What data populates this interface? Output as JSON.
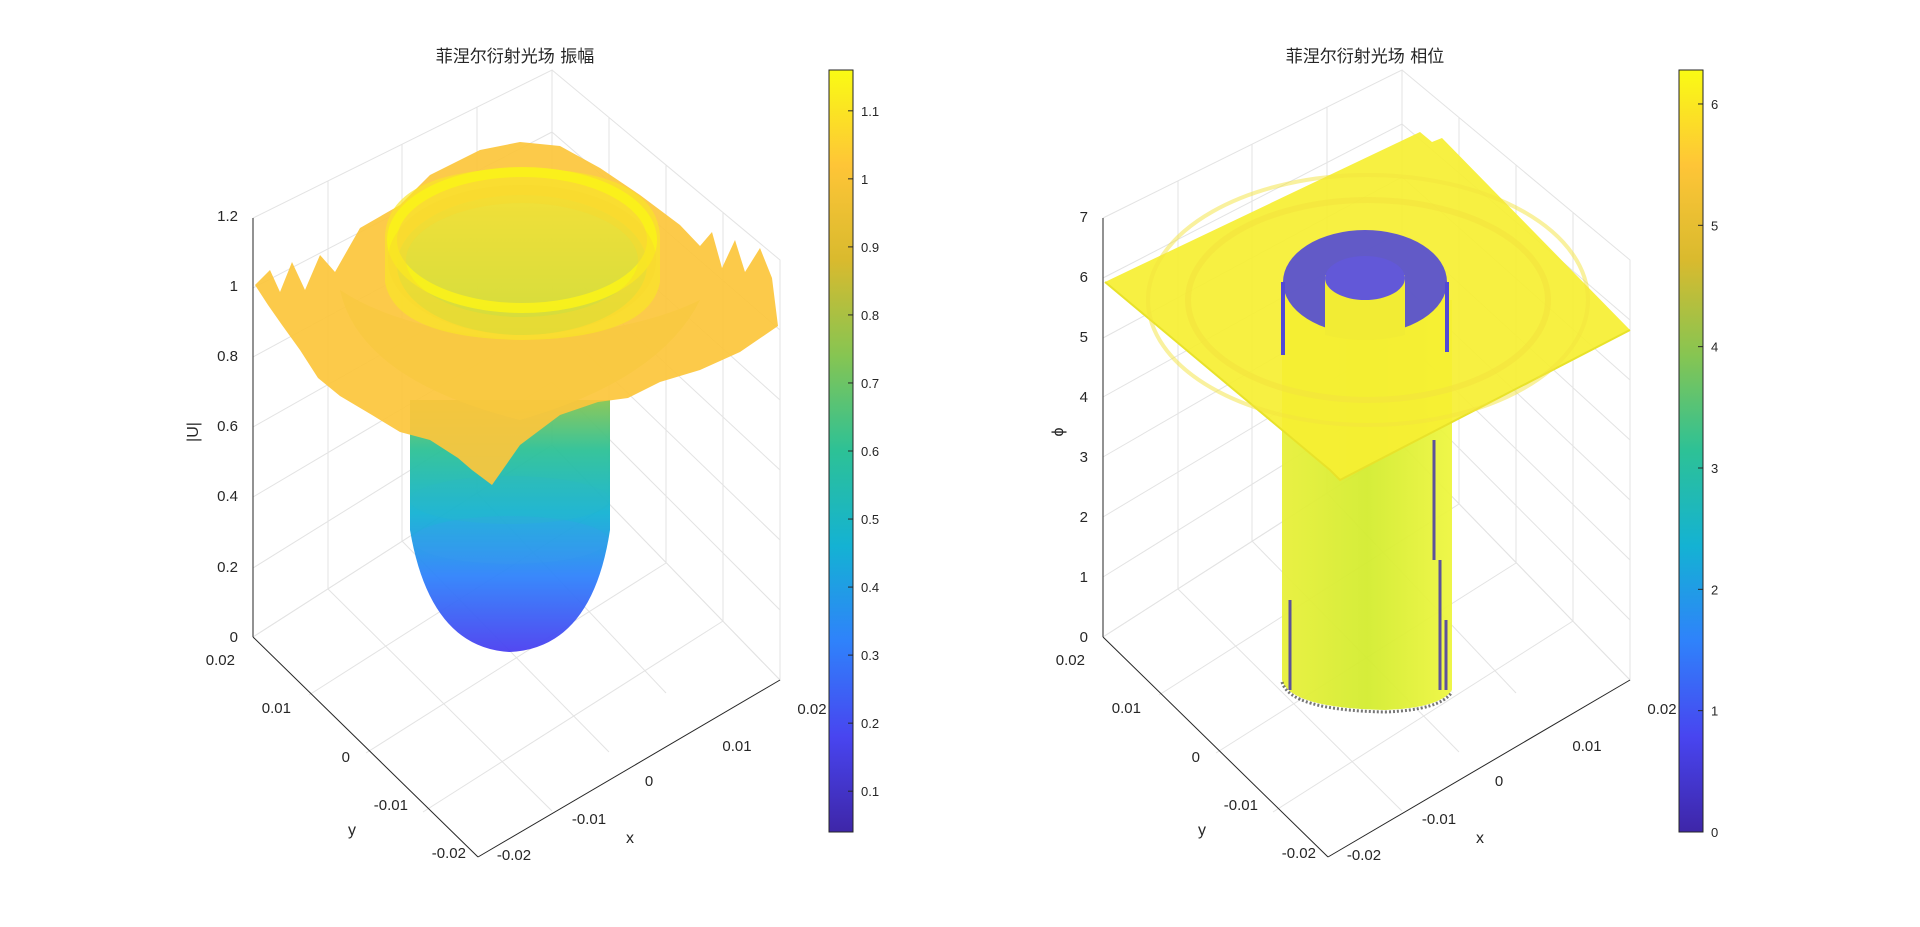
{
  "chart_data": [
    {
      "type": "surface3d",
      "title": "菲涅尔衍射光场 振幅",
      "xlabel": "x",
      "ylabel": "y",
      "zlabel": "|U|",
      "x_ticks": [
        "-0.02",
        "-0.01",
        "0",
        "0.01",
        "0.02"
      ],
      "y_ticks": [
        "-0.02",
        "-0.01",
        "0",
        "0.01",
        "0.02"
      ],
      "z_ticks": [
        "0",
        "0.2",
        "0.4",
        "0.6",
        "0.8",
        "1",
        "1.2"
      ],
      "xlim": [
        -0.02,
        0.02
      ],
      "ylim": [
        -0.02,
        0.02
      ],
      "zlim": [
        0,
        1.2
      ],
      "colormap": "parula",
      "colorbar": {
        "range": [
          0.04,
          1.16
        ],
        "ticks": [
          "0.1",
          "0.2",
          "0.3",
          "0.4",
          "0.5",
          "0.6",
          "0.7",
          "0.8",
          "0.9",
          "1",
          "1.1"
        ]
      },
      "grid": true
    },
    {
      "type": "surface3d",
      "title": "菲涅尔衍射光场 相位",
      "xlabel": "x",
      "ylabel": "y",
      "zlabel": "ϕ",
      "x_ticks": [
        "-0.02",
        "-0.01",
        "0",
        "0.01",
        "0.02"
      ],
      "y_ticks": [
        "-0.02",
        "-0.01",
        "0",
        "0.01",
        "0.02"
      ],
      "z_ticks": [
        "0",
        "1",
        "2",
        "3",
        "4",
        "5",
        "6",
        "7"
      ],
      "xlim": [
        -0.02,
        0.02
      ],
      "ylim": [
        -0.02,
        0.02
      ],
      "zlim": [
        0,
        7
      ],
      "colormap": "parula",
      "colorbar": {
        "range": [
          0,
          6.28
        ],
        "ticks": [
          "0",
          "1",
          "2",
          "3",
          "4",
          "5",
          "6"
        ]
      },
      "grid": true
    }
  ],
  "colors": {
    "parula": [
      "#3e26a8",
      "#4845f0",
      "#2f82fb",
      "#14b2d3",
      "#2dc196",
      "#86c552",
      "#d9ba2e",
      "#fec537",
      "#f9fb14"
    ],
    "axis": "#262626",
    "grid": "#e3e3e3"
  }
}
